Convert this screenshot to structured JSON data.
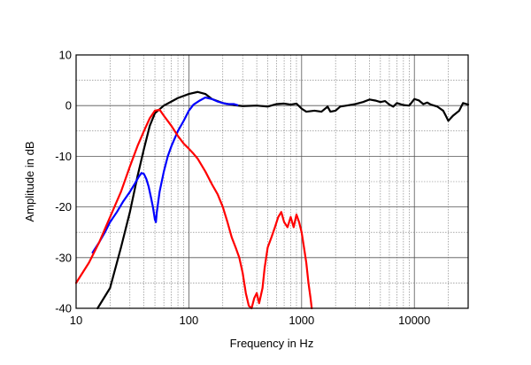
{
  "chart_data": {
    "type": "line",
    "title": "",
    "xlabel": "Frequency  in Hz",
    "ylabel": "Amplitude in dB",
    "xscale": "log",
    "xlim": [
      10,
      30000
    ],
    "ylim": [
      -40,
      10
    ],
    "grid": true,
    "x_tick_labels": [
      {
        "value": 10,
        "label": "10"
      },
      {
        "value": 100,
        "label": "100"
      },
      {
        "value": 1000,
        "label": "1000"
      },
      {
        "value": 10000,
        "label": "10000"
      }
    ],
    "y_tick_labels": [
      {
        "value": 10,
        "label": "10"
      },
      {
        "value": 0,
        "label": "0"
      },
      {
        "value": -10,
        "label": "-10"
      },
      {
        "value": -20,
        "label": "-20"
      },
      {
        "value": -30,
        "label": "-30"
      },
      {
        "value": -40,
        "label": "-40"
      }
    ],
    "series": [
      {
        "name": "black",
        "color": "#000000",
        "points": [
          [
            15.5,
            -40
          ],
          [
            20,
            -36
          ],
          [
            25,
            -28
          ],
          [
            30,
            -21
          ],
          [
            35,
            -14
          ],
          [
            40,
            -8.5
          ],
          [
            45,
            -4
          ],
          [
            50,
            -1.5
          ],
          [
            60,
            0
          ],
          [
            70,
            0.8
          ],
          [
            80,
            1.5
          ],
          [
            100,
            2.3
          ],
          [
            120,
            2.7
          ],
          [
            140,
            2.3
          ],
          [
            160,
            1.3
          ],
          [
            200,
            0.5
          ],
          [
            250,
            0.1
          ],
          [
            300,
            -0.1
          ],
          [
            400,
            0
          ],
          [
            500,
            -0.2
          ],
          [
            600,
            0.3
          ],
          [
            700,
            0.4
          ],
          [
            800,
            0.2
          ],
          [
            900,
            0.4
          ],
          [
            1000,
            -0.6
          ],
          [
            1100,
            -1.2
          ],
          [
            1300,
            -1
          ],
          [
            1500,
            -1.2
          ],
          [
            1700,
            -0.2
          ],
          [
            1800,
            -1.2
          ],
          [
            2000,
            -1
          ],
          [
            2200,
            -0.2
          ],
          [
            2500,
            0
          ],
          [
            3000,
            0.3
          ],
          [
            3500,
            0.7
          ],
          [
            4000,
            1.2
          ],
          [
            4500,
            1
          ],
          [
            5000,
            0.7
          ],
          [
            5500,
            0.9
          ],
          [
            6000,
            0.2
          ],
          [
            6500,
            -0.2
          ],
          [
            7000,
            0.5
          ],
          [
            8000,
            0.1
          ],
          [
            9000,
            0
          ],
          [
            10000,
            1.3
          ],
          [
            11000,
            1
          ],
          [
            12000,
            0.3
          ],
          [
            13000,
            0.6
          ],
          [
            14000,
            0.2
          ],
          [
            16000,
            -0.2
          ],
          [
            18000,
            -1
          ],
          [
            19000,
            -2
          ],
          [
            20000,
            -3
          ],
          [
            22000,
            -2
          ],
          [
            25000,
            -1
          ],
          [
            27000,
            0.5
          ],
          [
            30000,
            0.2
          ]
        ]
      },
      {
        "name": "blue",
        "color": "#0000ff",
        "points": [
          [
            14,
            -29
          ],
          [
            16,
            -27
          ],
          [
            18,
            -25
          ],
          [
            20,
            -23
          ],
          [
            23,
            -21
          ],
          [
            26,
            -19
          ],
          [
            30,
            -17
          ],
          [
            33,
            -15.5
          ],
          [
            36,
            -14
          ],
          [
            38,
            -13.3
          ],
          [
            40,
            -13.5
          ],
          [
            42,
            -14.5
          ],
          [
            44,
            -16
          ],
          [
            46,
            -18
          ],
          [
            48,
            -20
          ],
          [
            50,
            -22.5
          ],
          [
            51,
            -23
          ],
          [
            52,
            -21
          ],
          [
            55,
            -17
          ],
          [
            60,
            -13
          ],
          [
            65,
            -10
          ],
          [
            70,
            -8
          ],
          [
            80,
            -5
          ],
          [
            90,
            -3
          ],
          [
            100,
            -1
          ],
          [
            110,
            0.2
          ],
          [
            125,
            1
          ],
          [
            140,
            1.6
          ],
          [
            160,
            1.3
          ],
          [
            180,
            0.8
          ],
          [
            200,
            0.5
          ],
          [
            220,
            0.3
          ],
          [
            250,
            0.3
          ],
          [
            270,
            0.1
          ]
        ]
      },
      {
        "name": "red",
        "color": "#ff0000",
        "points": [
          [
            10,
            -35
          ],
          [
            13,
            -31
          ],
          [
            16,
            -27
          ],
          [
            20,
            -22
          ],
          [
            25,
            -17
          ],
          [
            30,
            -12
          ],
          [
            35,
            -8
          ],
          [
            40,
            -5
          ],
          [
            45,
            -2.5
          ],
          [
            50,
            -1
          ],
          [
            55,
            -0.8
          ],
          [
            60,
            -2
          ],
          [
            70,
            -4
          ],
          [
            80,
            -6
          ],
          [
            90,
            -7.5
          ],
          [
            100,
            -8.5
          ],
          [
            110,
            -9.5
          ],
          [
            120,
            -10.5
          ],
          [
            140,
            -13
          ],
          [
            160,
            -15.5
          ],
          [
            180,
            -17.5
          ],
          [
            200,
            -20
          ],
          [
            220,
            -23
          ],
          [
            240,
            -26
          ],
          [
            260,
            -28
          ],
          [
            280,
            -30
          ],
          [
            300,
            -33
          ],
          [
            320,
            -37
          ],
          [
            340,
            -39.5
          ],
          [
            360,
            -40
          ],
          [
            380,
            -38
          ],
          [
            400,
            -37
          ],
          [
            420,
            -39
          ],
          [
            450,
            -36
          ],
          [
            470,
            -32
          ],
          [
            500,
            -28
          ],
          [
            540,
            -26
          ],
          [
            580,
            -24
          ],
          [
            620,
            -22
          ],
          [
            660,
            -21
          ],
          [
            700,
            -23
          ],
          [
            750,
            -24
          ],
          [
            800,
            -22
          ],
          [
            850,
            -24
          ],
          [
            900,
            -21.5
          ],
          [
            950,
            -23
          ],
          [
            1000,
            -25
          ],
          [
            1050,
            -28
          ],
          [
            1100,
            -31
          ],
          [
            1150,
            -35
          ],
          [
            1200,
            -38
          ],
          [
            1230,
            -40
          ]
        ]
      }
    ]
  }
}
